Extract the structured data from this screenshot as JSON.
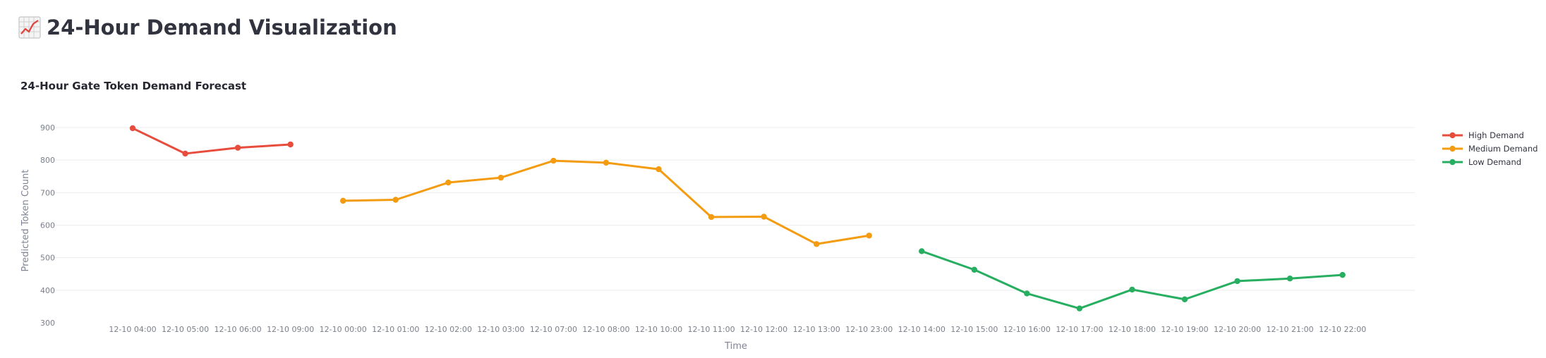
{
  "page": {
    "title": "24-Hour Demand Visualization",
    "title_icon": "chart-increasing-icon"
  },
  "chart_data": {
    "type": "line",
    "title": "24-Hour Gate Token Demand Forecast",
    "xlabel": "Time",
    "ylabel": "Predicted Token Count",
    "ylim": [
      300,
      900
    ],
    "yticks": [
      300,
      400,
      500,
      600,
      700,
      800,
      900
    ],
    "grid": true,
    "legend_position": "top-right",
    "categories": [
      "12-10 04:00",
      "12-10 05:00",
      "12-10 06:00",
      "12-10 09:00",
      "12-10 00:00",
      "12-10 01:00",
      "12-10 02:00",
      "12-10 03:00",
      "12-10 07:00",
      "12-10 08:00",
      "12-10 10:00",
      "12-10 11:00",
      "12-10 12:00",
      "12-10 13:00",
      "12-10 23:00",
      "12-10 14:00",
      "12-10 15:00",
      "12-10 16:00",
      "12-10 17:00",
      "12-10 18:00",
      "12-10 19:00",
      "12-10 20:00",
      "12-10 21:00",
      "12-10 22:00"
    ],
    "series": [
      {
        "name": "High Demand",
        "color": "#e74c3c",
        "x": [
          "12-10 04:00",
          "12-10 05:00",
          "12-10 06:00",
          "12-10 09:00"
        ],
        "values": [
          898,
          820,
          838,
          848
        ]
      },
      {
        "name": "Medium Demand",
        "color": "#f39c12",
        "x": [
          "12-10 00:00",
          "12-10 01:00",
          "12-10 02:00",
          "12-10 03:00",
          "12-10 07:00",
          "12-10 08:00",
          "12-10 10:00",
          "12-10 11:00",
          "12-10 12:00",
          "12-10 13:00",
          "12-10 23:00"
        ],
        "values": [
          675,
          678,
          731,
          746,
          798,
          792,
          772,
          625,
          626,
          542,
          568
        ]
      },
      {
        "name": "Low Demand",
        "color": "#27ae60",
        "x": [
          "12-10 14:00",
          "12-10 15:00",
          "12-10 16:00",
          "12-10 17:00",
          "12-10 18:00",
          "12-10 19:00",
          "12-10 20:00",
          "12-10 21:00",
          "12-10 22:00"
        ],
        "values": [
          520,
          463,
          390,
          344,
          402,
          372,
          428,
          436,
          447
        ]
      }
    ]
  }
}
